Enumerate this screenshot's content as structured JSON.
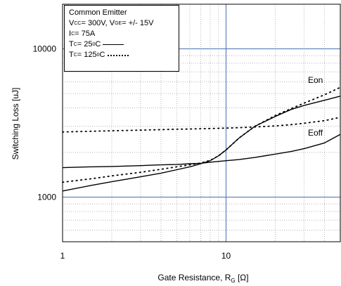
{
  "legend": {
    "line1": "Common Emitter",
    "vcc_sym": "V",
    "vcc_sub": "CC",
    "vcc_val": " = 300V, ",
    "vge_sym": "V",
    "vge_sub": "GE",
    "vge_val": " = +/- 15V",
    "ic_sym": "I",
    "ic_sub": "C",
    "ic_val": " = 75A",
    "tc_sym": "T",
    "tc_sub": "C",
    "tc25_val": " = 25",
    "tc125_val": " = 125",
    "deg_sup": "0",
    "unit": "C"
  },
  "chart_data": {
    "type": "line",
    "xlabel_main": "Gate Resistance, R",
    "xlabel_sub": "G",
    "xlabel_unit": " [Ω]",
    "ylabel": "Switching Loss [uJ]",
    "xscale": "log",
    "yscale": "log",
    "xlim": [
      1,
      50
    ],
    "ylim": [
      500,
      20000
    ],
    "x_tick_labels": [
      "1",
      "10"
    ],
    "y_tick_labels": [
      "1000",
      "10000"
    ],
    "grid": true,
    "annotations": {
      "eon": "Eon",
      "eoff": "Eoff"
    },
    "series": [
      {
        "curve": "Eon",
        "tc": 25,
        "style": "solid",
        "x": [
          1,
          1.5,
          2,
          3,
          4,
          5,
          6,
          7,
          8,
          9,
          10,
          12,
          15,
          20,
          25,
          30,
          40,
          50
        ],
        "y": [
          1100,
          1200,
          1270,
          1370,
          1450,
          1530,
          1600,
          1680,
          1760,
          1900,
          2080,
          2500,
          3000,
          3500,
          3900,
          4150,
          4500,
          4800
        ]
      },
      {
        "curve": "Eon",
        "tc": 125,
        "style": "dotted",
        "x": [
          1,
          1.5,
          2,
          3,
          4,
          5,
          6,
          7,
          8,
          9,
          10,
          12,
          15,
          20,
          25,
          30,
          40,
          50
        ],
        "y": [
          1260,
          1330,
          1390,
          1470,
          1540,
          1600,
          1650,
          1700,
          1770,
          1900,
          2080,
          2500,
          3000,
          3550,
          3950,
          4300,
          4900,
          5500
        ]
      },
      {
        "curve": "Eoff",
        "tc": 25,
        "style": "solid",
        "x": [
          1,
          1.5,
          2,
          3,
          4,
          5,
          6,
          7,
          8,
          9,
          10,
          12,
          15,
          20,
          25,
          30,
          40,
          50
        ],
        "y": [
          1580,
          1600,
          1610,
          1630,
          1650,
          1660,
          1680,
          1690,
          1720,
          1740,
          1760,
          1790,
          1850,
          1950,
          2030,
          2120,
          2320,
          2650
        ]
      },
      {
        "curve": "Eoff",
        "tc": 125,
        "style": "dotted",
        "x": [
          1,
          1.5,
          2,
          3,
          4,
          5,
          6,
          7,
          8,
          9,
          10,
          12,
          15,
          20,
          25,
          30,
          40,
          50
        ],
        "y": [
          2750,
          2780,
          2800,
          2830,
          2850,
          2870,
          2880,
          2890,
          2900,
          2910,
          2920,
          2940,
          2970,
          3020,
          3080,
          3150,
          3280,
          3450
        ]
      }
    ]
  }
}
